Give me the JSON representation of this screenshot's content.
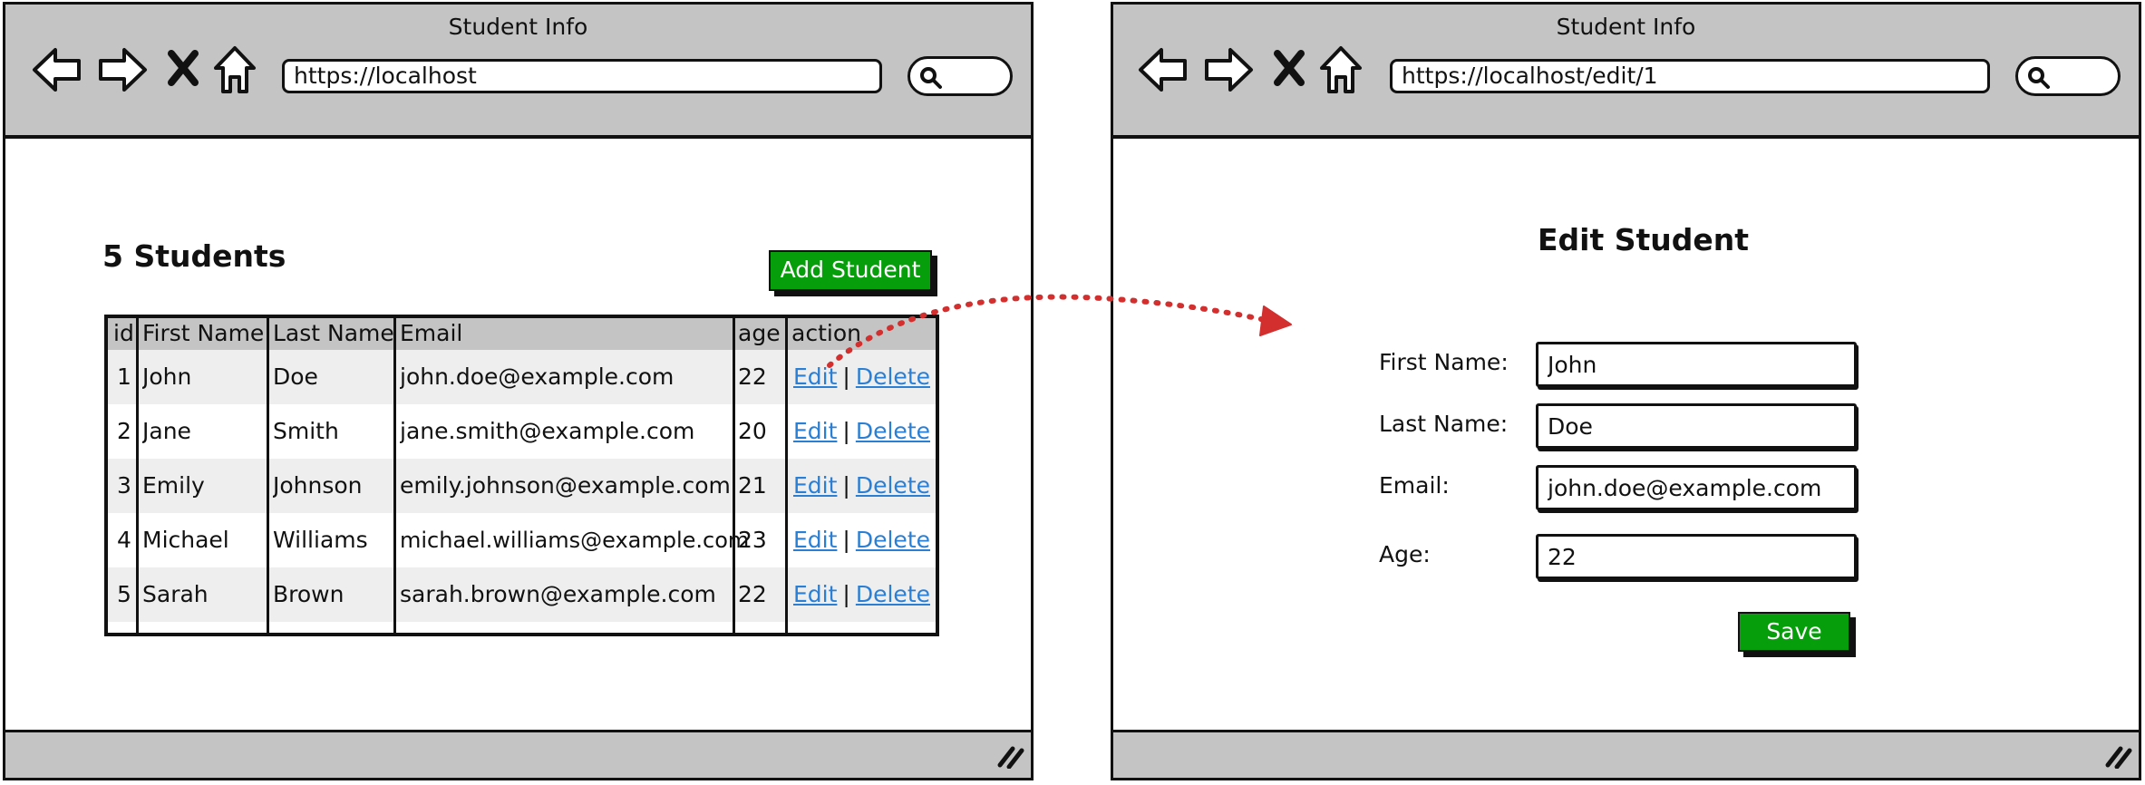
{
  "windows": {
    "list": {
      "title": "Student Info",
      "url": "https://localhost",
      "heading": "5 Students",
      "add_button": "Add Student",
      "table": {
        "headers": [
          "id",
          "First Name",
          "Last Name",
          "Email",
          "age",
          "action"
        ],
        "rows": [
          {
            "id": "1",
            "first": "John",
            "last": "Doe",
            "email": "john.doe@example.com",
            "age": "22"
          },
          {
            "id": "2",
            "first": "Jane",
            "last": "Smith",
            "email": "jane.smith@example.com",
            "age": "20"
          },
          {
            "id": "3",
            "first": "Emily",
            "last": "Johnson",
            "email": "emily.johnson@example.com",
            "age": "21"
          },
          {
            "id": "4",
            "first": "Michael",
            "last": "Williams",
            "email": "michael.williams@example.com",
            "age": "23"
          },
          {
            "id": "5",
            "first": "Sarah",
            "last": "Brown",
            "email": "sarah.brown@example.com",
            "age": "22"
          }
        ],
        "edit_label": "Edit",
        "separator": "|",
        "delete_label": "Delete"
      }
    },
    "edit": {
      "title": "Student Info",
      "url": "https://localhost/edit/1",
      "heading": "Edit Student",
      "fields": [
        {
          "label": "First Name:",
          "value": "John"
        },
        {
          "label": "Last Name:",
          "value": "Doe"
        },
        {
          "label": "Email:",
          "value": "john.doe@example.com"
        },
        {
          "label": "Age:",
          "value": "22"
        }
      ],
      "save_button": "Save"
    }
  },
  "colors": {
    "chrome": "#c4c4c4",
    "button_green": "#079e0c",
    "link_blue": "#2a7fd4",
    "arrow_red": "#d32f2f",
    "row_alt": "#eeeeee"
  },
  "icons": [
    "back-arrow-icon",
    "forward-arrow-icon",
    "close-x-icon",
    "home-icon",
    "search-icon",
    "resize-grip-icon"
  ]
}
